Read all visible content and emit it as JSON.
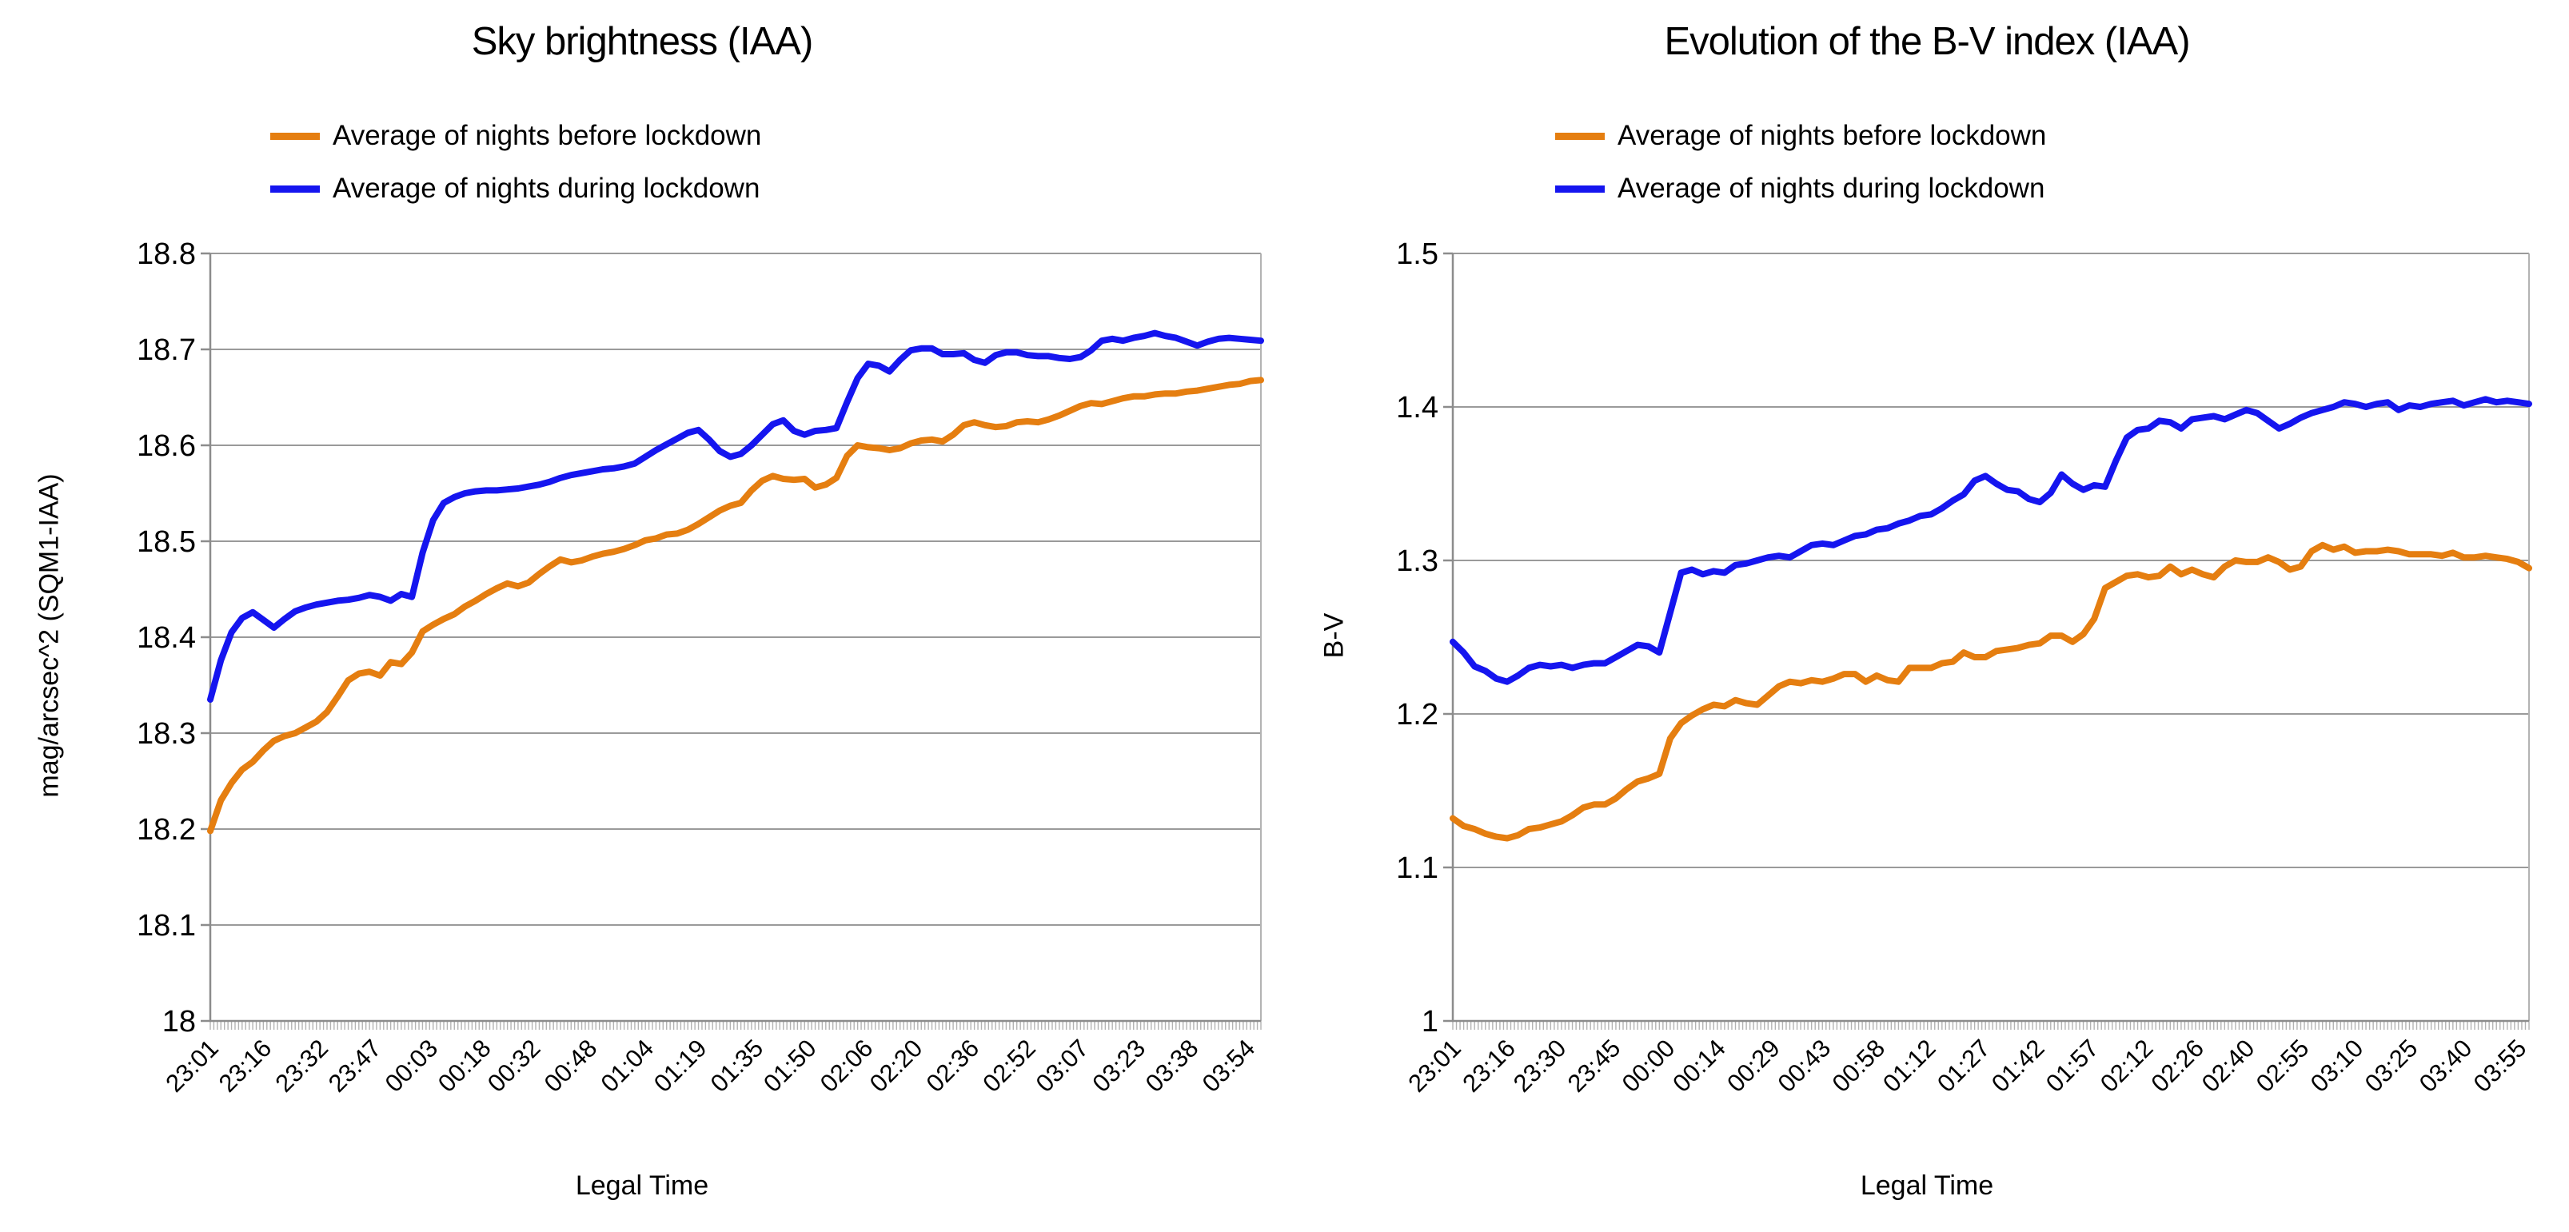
{
  "chart_data": [
    {
      "type": "line",
      "title": "Sky brightness (IAA)",
      "xlabel": "Legal Time",
      "ylabel": "mag/arcsec^2 (SQM1-IAA)",
      "ylim": [
        18,
        18.8
      ],
      "grid": "horizontal",
      "legend_position": "top-left",
      "y_tick_labels": [
        "18.8",
        "18.7",
        "18.6",
        "18.5",
        "18.4",
        "18.3",
        "18.2",
        "18.1",
        "18"
      ],
      "x_tick_labels": [
        "23:01",
        "23:16",
        "23:32",
        "23:47",
        "00:03",
        "00:18",
        "00:32",
        "00:48",
        "01:04",
        "01:19",
        "01:35",
        "01:50",
        "02:06",
        "02:20",
        "02:36",
        "02:52",
        "03:07",
        "03:23",
        "03:38",
        "03:54"
      ],
      "x_start": "23:01",
      "x_span_minutes": 297,
      "sample_interval_minutes": 3,
      "legend": [
        {
          "label": "Average of nights before lockdown",
          "color": "#e57e10"
        },
        {
          "label": "Average of nights during lockdown",
          "color": "#1515ef"
        }
      ],
      "series": [
        {
          "name": "Average of nights before lockdown",
          "color": "#e57e10",
          "values": [
            18.198,
            18.23,
            18.248,
            18.262,
            18.27,
            18.282,
            18.292,
            18.297,
            18.3,
            18.306,
            18.312,
            18.322,
            18.338,
            18.355,
            18.362,
            18.364,
            18.36,
            18.374,
            18.372,
            18.384,
            18.406,
            18.413,
            18.419,
            18.424,
            18.432,
            18.438,
            18.445,
            18.451,
            18.456,
            18.453,
            18.457,
            18.466,
            18.474,
            18.481,
            18.478,
            18.48,
            18.484,
            18.487,
            18.489,
            18.492,
            18.496,
            18.501,
            18.503,
            18.507,
            18.508,
            18.512,
            18.518,
            18.525,
            18.532,
            18.537,
            18.54,
            18.553,
            18.563,
            18.568,
            18.565,
            18.564,
            18.565,
            18.556,
            18.559,
            18.566,
            18.589,
            18.6,
            18.598,
            18.597,
            18.595,
            18.597,
            18.602,
            18.605,
            18.606,
            18.604,
            18.611,
            18.621,
            18.624,
            18.621,
            18.619,
            18.62,
            18.624,
            18.625,
            18.624,
            18.627,
            18.631,
            18.636,
            18.641,
            18.644,
            18.643,
            18.646,
            18.649,
            18.651,
            18.651,
            18.653,
            18.654,
            18.654,
            18.656,
            18.657,
            18.659,
            18.661,
            18.663,
            18.664,
            18.667,
            18.668
          ]
        },
        {
          "name": "Average of nights during lockdown",
          "color": "#1515ef",
          "values": [
            18.335,
            18.376,
            18.405,
            18.42,
            18.426,
            18.418,
            18.41,
            18.419,
            18.427,
            18.431,
            18.434,
            18.436,
            18.438,
            18.439,
            18.441,
            18.444,
            18.442,
            18.438,
            18.445,
            18.442,
            18.488,
            18.522,
            18.54,
            18.546,
            18.55,
            18.552,
            18.553,
            18.553,
            18.554,
            18.555,
            18.557,
            18.559,
            18.562,
            18.566,
            18.569,
            18.571,
            18.573,
            18.575,
            18.576,
            18.578,
            18.581,
            18.588,
            18.595,
            18.601,
            18.607,
            18.613,
            18.616,
            18.606,
            18.594,
            18.588,
            18.591,
            18.6,
            18.611,
            18.622,
            18.626,
            18.615,
            18.611,
            18.615,
            18.616,
            18.618,
            18.645,
            18.67,
            18.685,
            18.683,
            18.677,
            18.689,
            18.699,
            18.701,
            18.701,
            18.695,
            18.695,
            18.696,
            18.689,
            18.686,
            18.694,
            18.697,
            18.697,
            18.694,
            18.693,
            18.693,
            18.691,
            18.69,
            18.692,
            18.699,
            18.709,
            18.711,
            18.709,
            18.712,
            18.714,
            18.717,
            18.714,
            18.712,
            18.708,
            18.704,
            18.708,
            18.711,
            18.712,
            18.711,
            18.71,
            18.709
          ]
        }
      ]
    },
    {
      "type": "line",
      "title": "Evolution of the B-V index (IAA)",
      "xlabel": "Legal Time",
      "ylabel": "B-V",
      "ylim": [
        1,
        1.5
      ],
      "grid": "horizontal",
      "legend_position": "top-left",
      "y_tick_labels": [
        "1.5",
        "1.4",
        "1.3",
        "1.2",
        "1.1",
        "1"
      ],
      "x_tick_labels": [
        "23:01",
        "23:16",
        "23:30",
        "23:45",
        "00:00",
        "00:14",
        "00:29",
        "00:43",
        "00:58",
        "01:12",
        "01:27",
        "01:42",
        "01:57",
        "02:12",
        "02:26",
        "02:40",
        "02:55",
        "03:10",
        "03:25",
        "03:40",
        "03:55"
      ],
      "x_start": "23:01",
      "x_span_minutes": 297,
      "sample_interval_minutes": 3,
      "legend": [
        {
          "label": "Average of nights before lockdown",
          "color": "#e57e10"
        },
        {
          "label": "Average of nights during lockdown",
          "color": "#1515ef"
        }
      ],
      "series": [
        {
          "name": "Average of nights before lockdown",
          "color": "#e57e10",
          "values": [
            1.132,
            1.127,
            1.125,
            1.122,
            1.12,
            1.119,
            1.121,
            1.125,
            1.126,
            1.128,
            1.13,
            1.134,
            1.139,
            1.141,
            1.141,
            1.145,
            1.151,
            1.156,
            1.158,
            1.161,
            1.184,
            1.194,
            1.199,
            1.203,
            1.206,
            1.205,
            1.209,
            1.207,
            1.206,
            1.212,
            1.218,
            1.221,
            1.22,
            1.222,
            1.221,
            1.223,
            1.226,
            1.226,
            1.221,
            1.225,
            1.222,
            1.221,
            1.23,
            1.23,
            1.23,
            1.233,
            1.234,
            1.24,
            1.237,
            1.237,
            1.241,
            1.242,
            1.243,
            1.245,
            1.246,
            1.251,
            1.251,
            1.247,
            1.252,
            1.262,
            1.282,
            1.286,
            1.29,
            1.291,
            1.289,
            1.29,
            1.296,
            1.291,
            1.294,
            1.291,
            1.289,
            1.296,
            1.3,
            1.299,
            1.299,
            1.302,
            1.299,
            1.294,
            1.296,
            1.306,
            1.31,
            1.307,
            1.309,
            1.305,
            1.306,
            1.306,
            1.307,
            1.306,
            1.304,
            1.304,
            1.304,
            1.303,
            1.305,
            1.302,
            1.302,
            1.303,
            1.302,
            1.301,
            1.299,
            1.295
          ]
        },
        {
          "name": "Average of nights during lockdown",
          "color": "#1515ef",
          "values": [
            1.247,
            1.24,
            1.231,
            1.228,
            1.223,
            1.221,
            1.225,
            1.23,
            1.232,
            1.231,
            1.232,
            1.23,
            1.232,
            1.233,
            1.233,
            1.237,
            1.241,
            1.245,
            1.244,
            1.24,
            1.266,
            1.292,
            1.294,
            1.291,
            1.293,
            1.292,
            1.297,
            1.298,
            1.3,
            1.302,
            1.303,
            1.302,
            1.306,
            1.31,
            1.311,
            1.31,
            1.313,
            1.316,
            1.317,
            1.32,
            1.321,
            1.324,
            1.326,
            1.329,
            1.33,
            1.334,
            1.339,
            1.343,
            1.352,
            1.355,
            1.35,
            1.346,
            1.345,
            1.34,
            1.338,
            1.344,
            1.356,
            1.35,
            1.346,
            1.349,
            1.348,
            1.365,
            1.38,
            1.385,
            1.386,
            1.391,
            1.39,
            1.386,
            1.392,
            1.393,
            1.394,
            1.392,
            1.395,
            1.398,
            1.396,
            1.391,
            1.386,
            1.389,
            1.393,
            1.396,
            1.398,
            1.4,
            1.403,
            1.402,
            1.4,
            1.402,
            1.403,
            1.398,
            1.401,
            1.4,
            1.402,
            1.403,
            1.404,
            1.401,
            1.403,
            1.405,
            1.403,
            1.404,
            1.403,
            1.402
          ]
        }
      ]
    }
  ],
  "style_colors": {
    "series_before_lockdown": "#e57e10",
    "series_during_lockdown": "#1515ef",
    "gridline": "#9a9a9a",
    "axis": "#8c8c8c",
    "plot_border": "#b3b3b3",
    "minor_tick": "#b3b3b3",
    "text": "#000000"
  }
}
